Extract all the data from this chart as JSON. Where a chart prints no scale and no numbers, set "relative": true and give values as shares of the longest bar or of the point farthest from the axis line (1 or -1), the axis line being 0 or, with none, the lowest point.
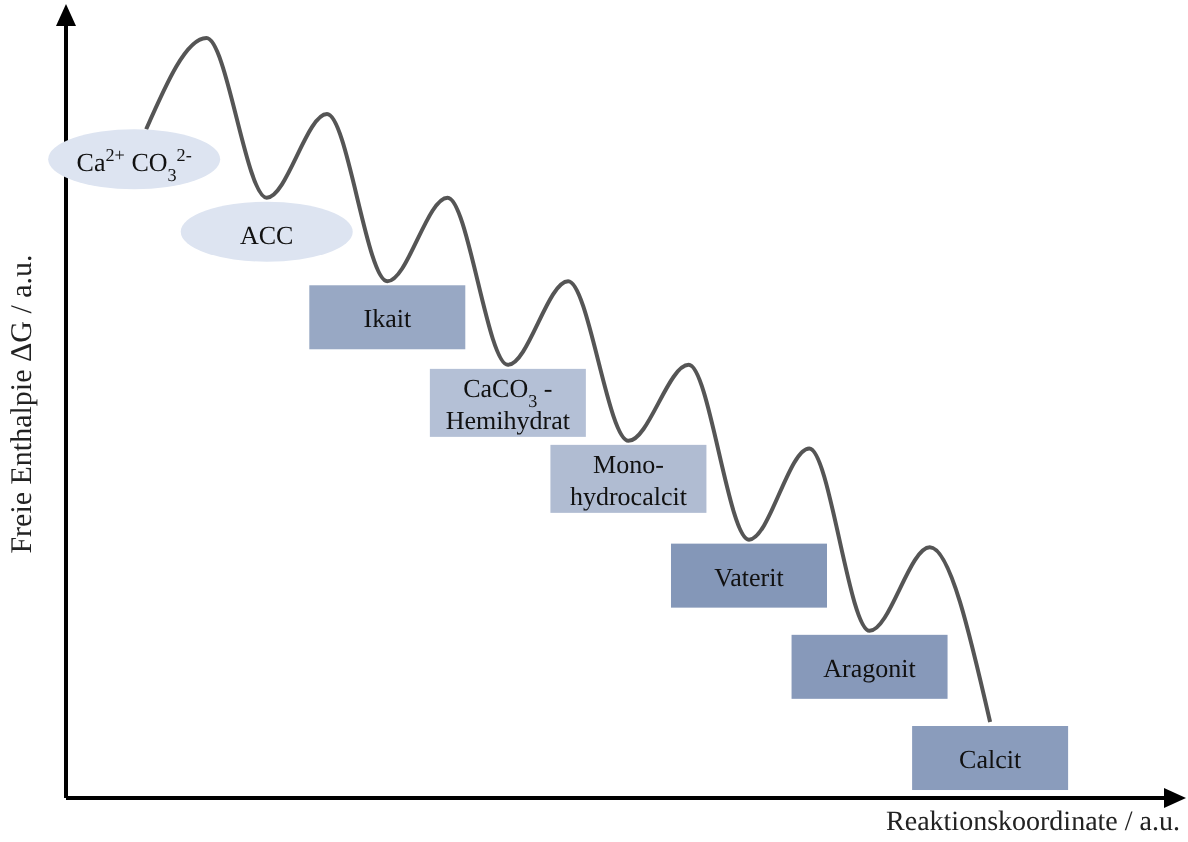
{
  "chart_data": {
    "type": "line",
    "relative": true,
    "ylabel": "Freie Enthalpie ΔG / a.u.",
    "xlabel": "Reaktionskoordinate / a.u.",
    "grid": false,
    "legend": false,
    "marker": "none",
    "line_style": "solid",
    "categories": [
      null,
      null,
      null,
      null,
      null,
      null,
      null,
      null,
      null,
      null,
      null,
      null,
      null,
      null,
      null
    ],
    "series": [
      {
        "color": "#555555",
        "values": [
          0.88,
          1,
          0.79,
          0.9,
          0.68,
          0.79,
          0.57,
          0.68,
          0.47,
          0.57,
          0.34,
          0.46,
          0.22,
          0.33,
          0.1
        ]
      }
    ],
    "annotations": [
      "Ca$^{2+}$ CO$_{3}$$^{2-}$",
      "ACC",
      "Ikait",
      "CaCO$_{3}$ -\nHemihydrat",
      "Mono-\nhydrocalcit",
      "Vaterit",
      "Aragonit",
      "Calcit"
    ]
  }
}
